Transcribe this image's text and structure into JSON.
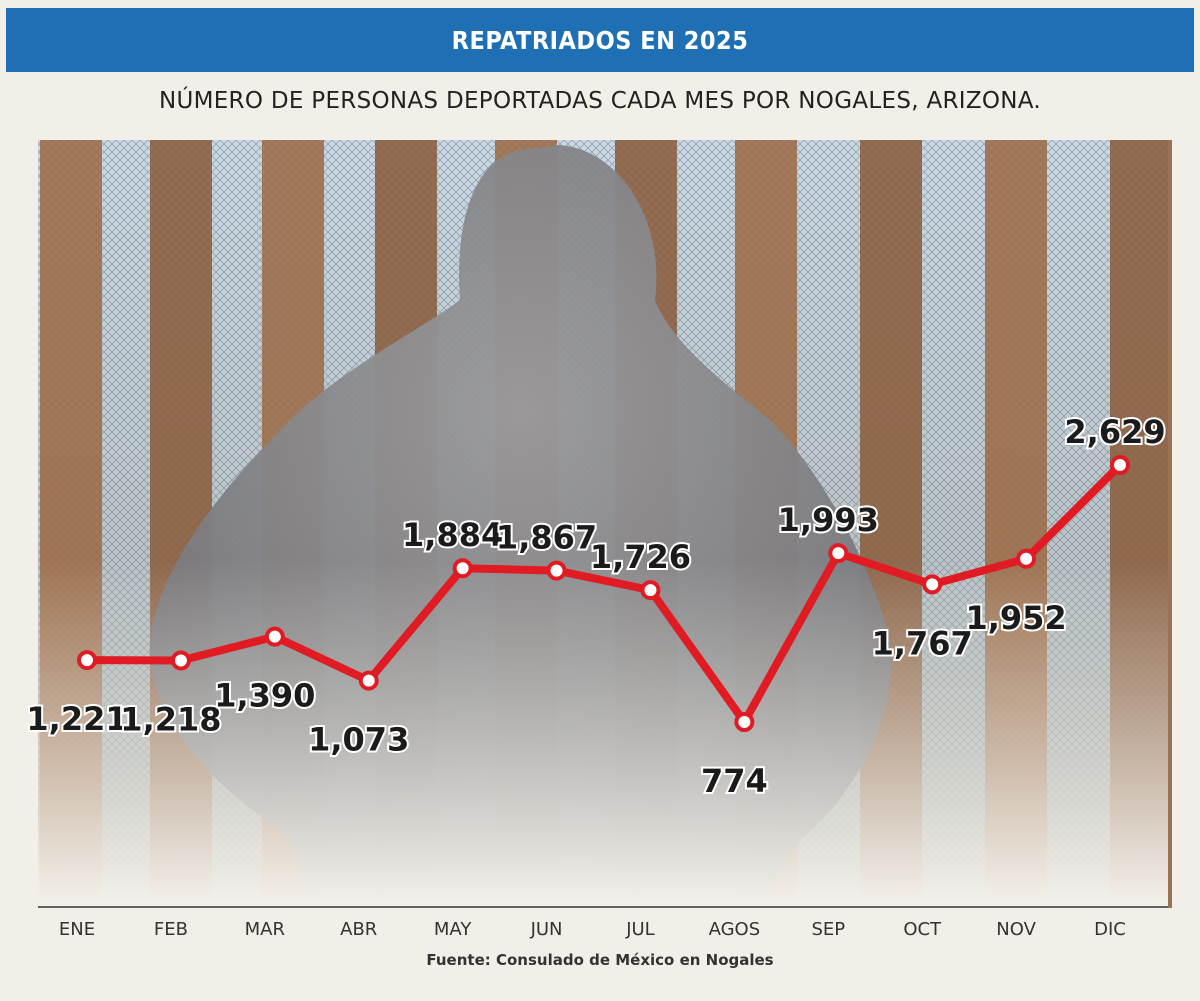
{
  "header": {
    "title": "REPATRIADOS EN 2025"
  },
  "subtitle": "NÚMERO DE PERSONAS DEPORTADAS CADA MES POR NOGALES, ARIZONA.",
  "source": "Fuente: Consulado de México en Nogales",
  "colors": {
    "header": "#1f6fb5",
    "line": "#e01b24"
  },
  "chart_data": {
    "type": "line",
    "categories": [
      "ENE",
      "FEB",
      "MAR",
      "ABR",
      "MAY",
      "JUN",
      "JUL",
      "AGOS",
      "SEP",
      "OCT",
      "NOV",
      "DIC"
    ],
    "values": [
      1221,
      1218,
      1390,
      1073,
      1884,
      1867,
      1726,
      774,
      1993,
      1767,
      1952,
      2629
    ],
    "labels": [
      "1,221",
      "1,218",
      "1,390",
      "1,073",
      "1,884",
      "1,867",
      "1,726",
      "774",
      "1,993",
      "1,767",
      "1,952",
      "2,629"
    ],
    "label_positions": [
      "below",
      "below",
      "below",
      "below",
      "above",
      "above",
      "above",
      "below",
      "above",
      "below",
      "below",
      "above"
    ],
    "grid": false,
    "xlabel": "",
    "ylabel": ""
  }
}
